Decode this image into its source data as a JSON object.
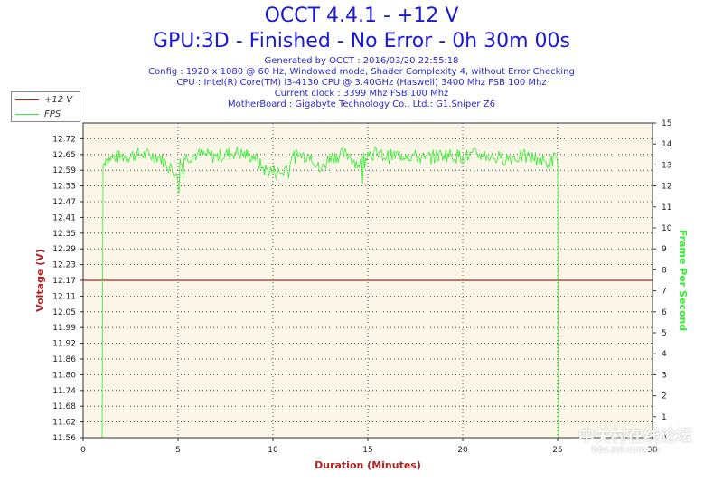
{
  "header": {
    "title": "OCCT 4.4.1 - +12 V",
    "subtitle": "GPU:3D - Finished - No Error - 0h 30m 00s",
    "info_lines": [
      "Generated by OCCT : 2016/03/20 22:55:18",
      "Config : 1920 x 1080 @ 60 Hz, Windowed mode, Shader Complexity 4, without Error Checking",
      "CPU : Intel(R) Core(TM) i3-4130 CPU @ 3.40GHz (Haswell) 3400 Mhz FSB 100 Mhz",
      "Current clock : 3399 Mhz FSB 100 Mhz",
      "MotherBoard : Gigabyte Technology Co., Ltd.: G1.Sniper Z6"
    ]
  },
  "legend": {
    "entries": [
      "+12 V",
      "FPS"
    ]
  },
  "watermark": {
    "line1": "中关村在线论坛",
    "line2": "bbs.zol.com.cn"
  },
  "colors": {
    "voltage": "#b22222",
    "fps": "#33ee33",
    "plot_bg": "#fbf6e8",
    "title": "#1a1ad6"
  },
  "chart_data": {
    "type": "line",
    "xlabel": "Duration (Minutes)",
    "ylabel": "Voltage (V)",
    "y2label": "Frame Per Second",
    "xlim": [
      0,
      30
    ],
    "ylim": [
      11.56,
      12.78
    ],
    "y2lim": [
      0,
      15
    ],
    "x_ticks": [
      0,
      5,
      10,
      15,
      20,
      25,
      30
    ],
    "y_ticks": [
      "11.56",
      "11.62",
      "11.68",
      "11.74",
      "11.80",
      "11.86",
      "11.92",
      "11.99",
      "12.05",
      "12.11",
      "12.17",
      "12.23",
      "12.29",
      "12.35",
      "12.41",
      "12.47",
      "12.53",
      "12.59",
      "12.65",
      "12.72"
    ],
    "y2_ticks": [
      0,
      1,
      2,
      3,
      4,
      5,
      6,
      7,
      8,
      9,
      10,
      11,
      12,
      13,
      14,
      15
    ],
    "grid": true,
    "legend_position": "top-left",
    "series": [
      {
        "name": "+12 V",
        "axis": "left",
        "x": [
          0,
          30
        ],
        "values": [
          12.17,
          12.17
        ]
      },
      {
        "name": "FPS",
        "axis": "right",
        "x": [
          1.0,
          1.05,
          1.2,
          2,
          3,
          4,
          4.9,
          5.0,
          5.1,
          6,
          7,
          8,
          9,
          9.5,
          10.5,
          11,
          12,
          12.5,
          13,
          14,
          14.5,
          15,
          16,
          17,
          18,
          19,
          20,
          21,
          22,
          23,
          24,
          24.5,
          24.9,
          25.0,
          25.05
        ],
        "values": [
          0,
          13.0,
          13.3,
          13.4,
          13.5,
          13.4,
          12.6,
          12.0,
          13.3,
          13.5,
          13.4,
          13.6,
          13.4,
          12.8,
          12.6,
          13.4,
          13.5,
          12.7,
          13.4,
          13.5,
          13.0,
          13.6,
          13.4,
          13.5,
          13.3,
          13.5,
          13.4,
          13.5,
          13.3,
          13.4,
          13.3,
          13.0,
          13.4,
          13.0,
          0
        ]
      }
    ]
  }
}
